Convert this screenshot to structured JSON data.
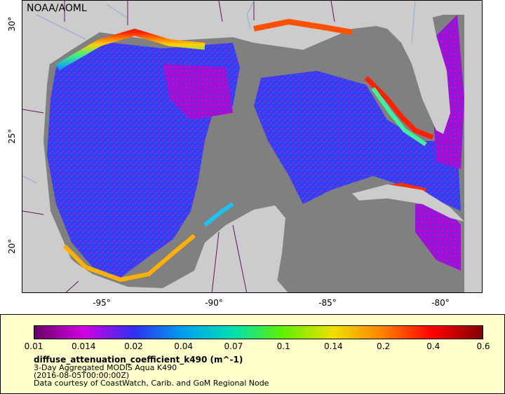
{
  "map": {
    "credit": "NOAA/AOML",
    "x_ticks": [
      "-95°",
      "-90°",
      "-85°",
      "-80°"
    ],
    "y_ticks": [
      "30°",
      "25°",
      "20°"
    ],
    "colors": {
      "land": "#cccccc",
      "no_data": "#808080",
      "borders": "#6a0f5a",
      "rivers": "#8fa9d6"
    }
  },
  "legend": {
    "ticks": [
      "0.01",
      "0.014",
      "0.02",
      "0.04",
      "0.07",
      "0.1",
      "0.14",
      "0.2",
      "0.4",
      "0.6"
    ],
    "colorbar_colors": [
      "#6a006a",
      "#d000e0",
      "#3030f0",
      "#00a0f0",
      "#00e0b0",
      "#60f000",
      "#f0e000",
      "#ff8000",
      "#ff0000",
      "#800000"
    ],
    "variable": "diffuse_attenuation_coefficient_k490 (m^-1)",
    "line1": "3-Day Aggregated MODIS Aqua K490",
    "line2": "(2016-08-05T00:00:00Z)",
    "line3": "Data courtesy of CoastWatch, Carib. and GoM Regional Node"
  }
}
